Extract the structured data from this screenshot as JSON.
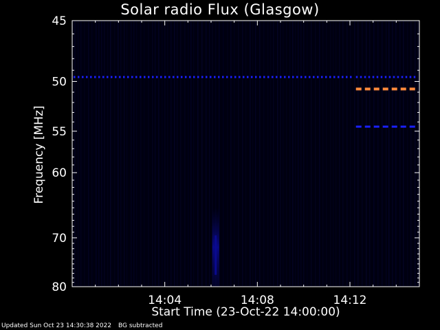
{
  "chart_data": {
    "type": "heatmap",
    "title": "Solar radio Flux (Glasgow)",
    "xlabel": "Start Time (23-Oct-22 14:00:00)",
    "ylabel": "Frequency [MHz]",
    "x_ticks": [
      "14:04",
      "14:08",
      "14:12"
    ],
    "x_tick_minutes": [
      4,
      8,
      12
    ],
    "xlim_minutes": [
      0,
      15
    ],
    "y_ticks": [
      45,
      50,
      55,
      60,
      70,
      80
    ],
    "ylim": [
      80,
      45
    ],
    "y_scale": "reciprocal",
    "colormap": [
      "#000010",
      "#00008a",
      "#ff8a3c"
    ],
    "background_color": "#000000",
    "features": [
      {
        "kind": "dotted-band",
        "freq_mhz": 49.6,
        "x_from": 0,
        "x_to": 12.2,
        "level": "low",
        "color": "#1a20ff"
      },
      {
        "kind": "dashed-band",
        "freq_mhz": 50.7,
        "x_from": 12.2,
        "x_to": 15,
        "level": "high",
        "color": "#ff8a3c"
      },
      {
        "kind": "dashed-band",
        "freq_mhz": 54.5,
        "x_from": 12.2,
        "x_to": 15,
        "level": "low",
        "color": "#1a20ff"
      },
      {
        "kind": "dotted-band",
        "freq_mhz": 49.6,
        "x_from": 12.2,
        "x_to": 15,
        "level": "low",
        "color": "#1a20ff"
      },
      {
        "kind": "burst",
        "x_minutes": 6.2,
        "freq_from": 65,
        "freq_to": 80,
        "level": "low",
        "color": "#0a0a90"
      }
    ]
  },
  "footer": {
    "updated": "Updated Sun Oct 23 14:30:38 2022",
    "note": "BG subtracted"
  }
}
